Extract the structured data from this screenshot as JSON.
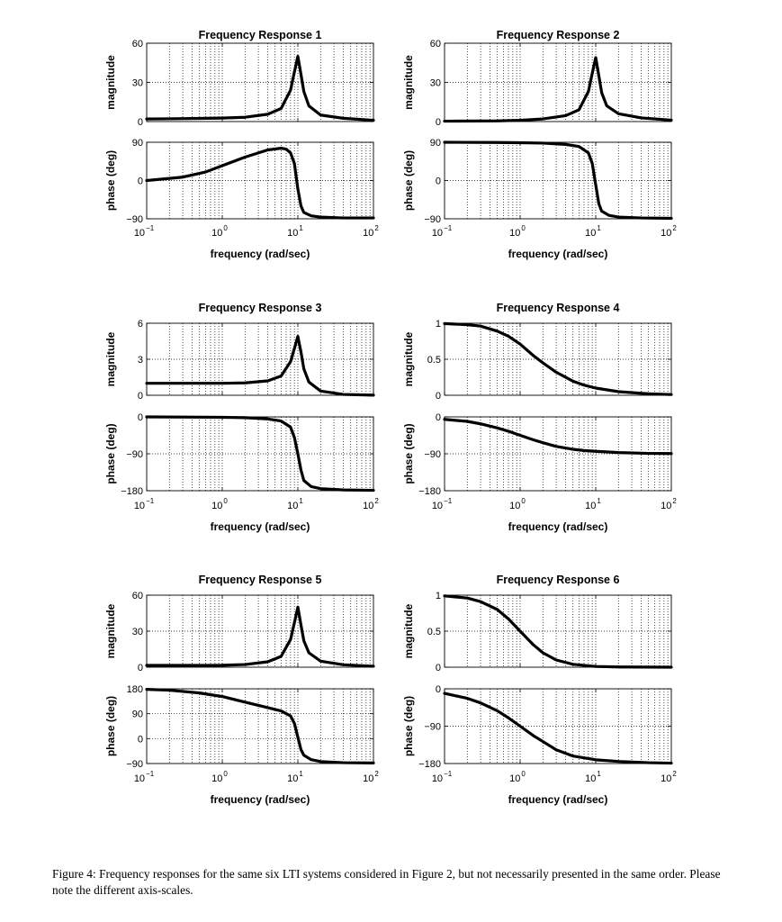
{
  "figure": {
    "caption": "Figure 4: Frequency responses for the same six LTI systems considered in Figure 2, but not necessarily presented in the same order. Please note the different axis-scales."
  },
  "chart_data": [
    {
      "type": "line",
      "title": "Frequency Response 1",
      "xlabel": "frequency (rad/sec)",
      "x_scale": "log",
      "xlim": [
        0.1,
        100
      ],
      "x_ticks": [
        0.1,
        1,
        10,
        100
      ],
      "x_tick_labels": [
        [
          "10",
          "−1"
        ],
        [
          "10",
          "0"
        ],
        [
          "10",
          "1"
        ],
        [
          "10",
          "2"
        ]
      ],
      "grid": true,
      "magnitude": {
        "ylabel": "magnitude",
        "ylim": [
          0,
          60
        ],
        "y_ticks": [
          0,
          30,
          60
        ],
        "y_tick_labels": [
          "0",
          "30",
          "60"
        ],
        "x": [
          0.1,
          0.2,
          0.5,
          1,
          2,
          4,
          6,
          8,
          9,
          10,
          11,
          12,
          14,
          20,
          40,
          100
        ],
        "y": [
          2,
          2.1,
          2.4,
          2.7,
          3.3,
          5.6,
          10,
          24,
          38,
          50,
          36,
          23,
          12,
          5,
          2.5,
          1
        ]
      },
      "phase": {
        "ylabel": "phase (deg)",
        "ylim": [
          -90,
          90
        ],
        "y_ticks": [
          -90,
          0,
          90
        ],
        "y_tick_labels": [
          "−90",
          "0",
          "90"
        ],
        "x": [
          0.1,
          0.3,
          0.6,
          1,
          2,
          4,
          6,
          7,
          8,
          9,
          10,
          11,
          12,
          15,
          20,
          40,
          100
        ],
        "y": [
          0,
          8,
          20,
          35,
          55,
          72,
          76,
          74,
          65,
          40,
          -20,
          -60,
          -75,
          -83,
          -86,
          -88,
          -88
        ]
      }
    },
    {
      "type": "line",
      "title": "Frequency Response 2",
      "xlabel": "frequency (rad/sec)",
      "x_scale": "log",
      "xlim": [
        0.1,
        100
      ],
      "x_ticks": [
        0.1,
        1,
        10,
        100
      ],
      "x_tick_labels": [
        [
          "10",
          "−1"
        ],
        [
          "10",
          "0"
        ],
        [
          "10",
          "1"
        ],
        [
          "10",
          "2"
        ]
      ],
      "grid": true,
      "magnitude": {
        "ylabel": "magnitude",
        "ylim": [
          0,
          60
        ],
        "y_ticks": [
          0,
          30,
          60
        ],
        "y_tick_labels": [
          "0",
          "30",
          "60"
        ],
        "x": [
          0.1,
          0.5,
          1,
          2,
          4,
          6,
          8,
          9,
          10,
          11,
          12,
          14,
          20,
          40,
          100
        ],
        "y": [
          0.3,
          0.5,
          1,
          2,
          4.5,
          9,
          23,
          37,
          49,
          35,
          22,
          12,
          6,
          2.8,
          1.1
        ]
      },
      "phase": {
        "ylabel": "phase (deg)",
        "ylim": [
          -90,
          90
        ],
        "y_ticks": [
          -90,
          0,
          90
        ],
        "y_tick_labels": [
          "−90",
          "0",
          "90"
        ],
        "x": [
          0.1,
          0.5,
          1,
          2,
          4,
          6,
          8,
          9,
          10,
          11,
          12,
          15,
          20,
          40,
          100
        ],
        "y": [
          90,
          89.5,
          89,
          88,
          85,
          80,
          65,
          40,
          -10,
          -55,
          -72,
          -82,
          -86,
          -88,
          -89
        ]
      }
    },
    {
      "type": "line",
      "title": "Frequency Response 3",
      "xlabel": "frequency (rad/sec)",
      "x_scale": "log",
      "xlim": [
        0.1,
        100
      ],
      "x_ticks": [
        0.1,
        1,
        10,
        100
      ],
      "x_tick_labels": [
        [
          "10",
          "−1"
        ],
        [
          "10",
          "0"
        ],
        [
          "10",
          "1"
        ],
        [
          "10",
          "2"
        ]
      ],
      "grid": true,
      "magnitude": {
        "ylabel": "magnitude",
        "ylim": [
          0,
          6
        ],
        "y_ticks": [
          0,
          3,
          6
        ],
        "y_tick_labels": [
          "0",
          "3",
          "6"
        ],
        "x": [
          0.1,
          1,
          2,
          4,
          6,
          8,
          9,
          10,
          11,
          12,
          14,
          20,
          40,
          100
        ],
        "y": [
          1,
          1,
          1.03,
          1.2,
          1.6,
          2.8,
          3.9,
          4.9,
          3.6,
          2.2,
          1.1,
          0.35,
          0.07,
          0.01
        ]
      },
      "phase": {
        "ylabel": "phase (deg)",
        "ylim": [
          -180,
          0
        ],
        "y_ticks": [
          -180,
          -90,
          0
        ],
        "y_tick_labels": [
          "−180",
          "−90",
          "0"
        ],
        "x": [
          0.1,
          1,
          2,
          4,
          6,
          8,
          9,
          10,
          11,
          12,
          15,
          20,
          40,
          100
        ],
        "y": [
          0,
          -1,
          -2,
          -5,
          -10,
          -25,
          -50,
          -90,
          -130,
          -155,
          -170,
          -175,
          -178,
          -179
        ]
      }
    },
    {
      "type": "line",
      "title": "Frequency Response 4",
      "xlabel": "frequency (rad/sec)",
      "x_scale": "log",
      "xlim": [
        0.1,
        100
      ],
      "x_ticks": [
        0.1,
        1,
        10,
        100
      ],
      "x_tick_labels": [
        [
          "10",
          "−1"
        ],
        [
          "10",
          "0"
        ],
        [
          "10",
          "1"
        ],
        [
          "10",
          "2"
        ]
      ],
      "grid": true,
      "magnitude": {
        "ylabel": "magnitude",
        "ylim": [
          0,
          1
        ],
        "y_ticks": [
          0,
          0.5,
          1
        ],
        "y_tick_labels": [
          "0",
          "0.5",
          "1"
        ],
        "x": [
          0.1,
          0.2,
          0.3,
          0.5,
          0.7,
          1,
          1.5,
          2,
          3,
          5,
          7,
          10,
          20,
          50,
          100
        ],
        "y": [
          0.995,
          0.98,
          0.96,
          0.89,
          0.82,
          0.71,
          0.55,
          0.45,
          0.32,
          0.196,
          0.141,
          0.1,
          0.05,
          0.02,
          0.01
        ]
      },
      "phase": {
        "ylabel": "phase (deg)",
        "ylim": [
          -180,
          0
        ],
        "y_ticks": [
          -180,
          -90,
          0
        ],
        "y_tick_labels": [
          "−180",
          "−90",
          "0"
        ],
        "x": [
          0.1,
          0.2,
          0.3,
          0.5,
          0.7,
          1,
          1.5,
          2,
          3,
          5,
          7,
          10,
          20,
          50,
          100
        ],
        "y": [
          -6,
          -11,
          -17,
          -27,
          -35,
          -45,
          -56,
          -63,
          -72,
          -79,
          -82,
          -84,
          -87,
          -89,
          -89.5
        ]
      }
    },
    {
      "type": "line",
      "title": "Frequency Response 5",
      "xlabel": "frequency (rad/sec)",
      "x_scale": "log",
      "xlim": [
        0.1,
        100
      ],
      "x_ticks": [
        0.1,
        1,
        10,
        100
      ],
      "x_tick_labels": [
        [
          "10",
          "−1"
        ],
        [
          "10",
          "0"
        ],
        [
          "10",
          "1"
        ],
        [
          "10",
          "2"
        ]
      ],
      "grid": true,
      "magnitude": {
        "ylabel": "magnitude",
        "ylim": [
          0,
          60
        ],
        "y_ticks": [
          0,
          30,
          60
        ],
        "y_tick_labels": [
          "0",
          "30",
          "60"
        ],
        "x": [
          0.1,
          1,
          2,
          4,
          6,
          8,
          9,
          10,
          11,
          12,
          14,
          20,
          40,
          100
        ],
        "y": [
          1.5,
          1.6,
          2.2,
          4.5,
          9,
          23,
          37,
          50,
          35,
          22,
          12,
          5,
          2,
          0.8
        ]
      },
      "phase": {
        "ylabel": "phase (deg)",
        "ylim": [
          -90,
          180
        ],
        "y_ticks": [
          -90,
          0,
          90,
          180
        ],
        "y_tick_labels": [
          "−90",
          "0",
          "90",
          "180"
        ],
        "x": [
          0.1,
          0.2,
          0.5,
          1,
          2,
          4,
          6,
          8,
          9,
          10,
          11,
          12,
          15,
          20,
          40,
          100
        ],
        "y": [
          178,
          175,
          165,
          152,
          132,
          112,
          100,
          82,
          55,
          5,
          -40,
          -60,
          -76,
          -83,
          -87,
          -88
        ]
      }
    },
    {
      "type": "line",
      "title": "Frequency Response 6",
      "xlabel": "frequency (rad/sec)",
      "x_scale": "log",
      "xlim": [
        0.1,
        100
      ],
      "x_ticks": [
        0.1,
        1,
        10,
        100
      ],
      "x_tick_labels": [
        [
          "10",
          "−1"
        ],
        [
          "10",
          "0"
        ],
        [
          "10",
          "1"
        ],
        [
          "10",
          "2"
        ]
      ],
      "grid": true,
      "magnitude": {
        "ylabel": "magnitude",
        "ylim": [
          0,
          1
        ],
        "y_ticks": [
          0,
          0.5,
          1
        ],
        "y_tick_labels": [
          "0",
          "0.5",
          "1"
        ],
        "x": [
          0.1,
          0.2,
          0.3,
          0.5,
          0.7,
          1,
          1.5,
          2,
          3,
          5,
          10,
          20,
          100
        ],
        "y": [
          0.99,
          0.96,
          0.91,
          0.8,
          0.67,
          0.5,
          0.31,
          0.2,
          0.1,
          0.04,
          0.01,
          0.003,
          0.0
        ]
      },
      "phase": {
        "ylabel": "phase (deg)",
        "ylim": [
          -180,
          0
        ],
        "y_ticks": [
          -180,
          -90,
          0
        ],
        "y_tick_labels": [
          "−180",
          "−90",
          "0"
        ],
        "x": [
          0.1,
          0.2,
          0.3,
          0.5,
          0.7,
          1,
          1.5,
          2,
          3,
          5,
          10,
          20,
          50,
          100
        ],
        "y": [
          -11,
          -23,
          -34,
          -53,
          -70,
          -90,
          -113,
          -127,
          -147,
          -162,
          -171,
          -175,
          -178,
          -179
        ]
      }
    }
  ]
}
